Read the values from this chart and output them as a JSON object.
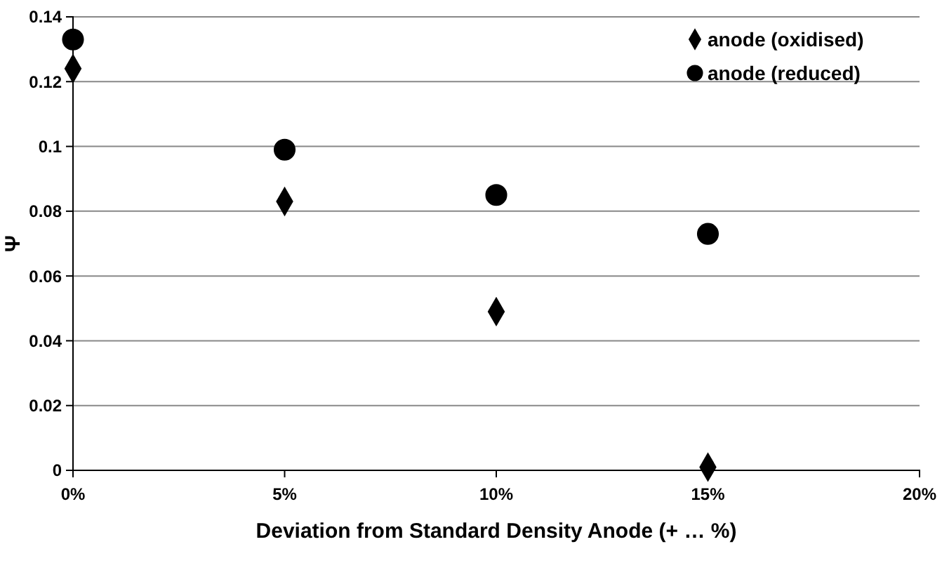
{
  "chart_data": {
    "type": "scatter",
    "xlabel": "Deviation from Standard Density Anode (+ … %)",
    "ylabel": "Ψ",
    "x": [
      0,
      5,
      10,
      15
    ],
    "series": [
      {
        "name": "anode (oxidised)",
        "color": "#000000",
        "marker": "diamond",
        "values": [
          0.124,
          0.083,
          0.049,
          0.001
        ]
      },
      {
        "name": "anode (reduced)",
        "color": "#000000",
        "marker": "circle",
        "values": [
          0.133,
          0.099,
          0.085,
          0.073
        ]
      }
    ],
    "xlim": [
      0,
      20
    ],
    "xticks": [
      {
        "value": 0,
        "label": "0%"
      },
      {
        "value": 5,
        "label": "5%"
      },
      {
        "value": 10,
        "label": "10%"
      },
      {
        "value": 15,
        "label": "15%"
      },
      {
        "value": 20,
        "label": "20%"
      }
    ],
    "ylim": [
      0,
      0.14
    ],
    "yticks": [
      0,
      0.02,
      0.04,
      0.06,
      0.08,
      0.1,
      0.12,
      0.14
    ],
    "grid": "y",
    "legend": "top right"
  }
}
